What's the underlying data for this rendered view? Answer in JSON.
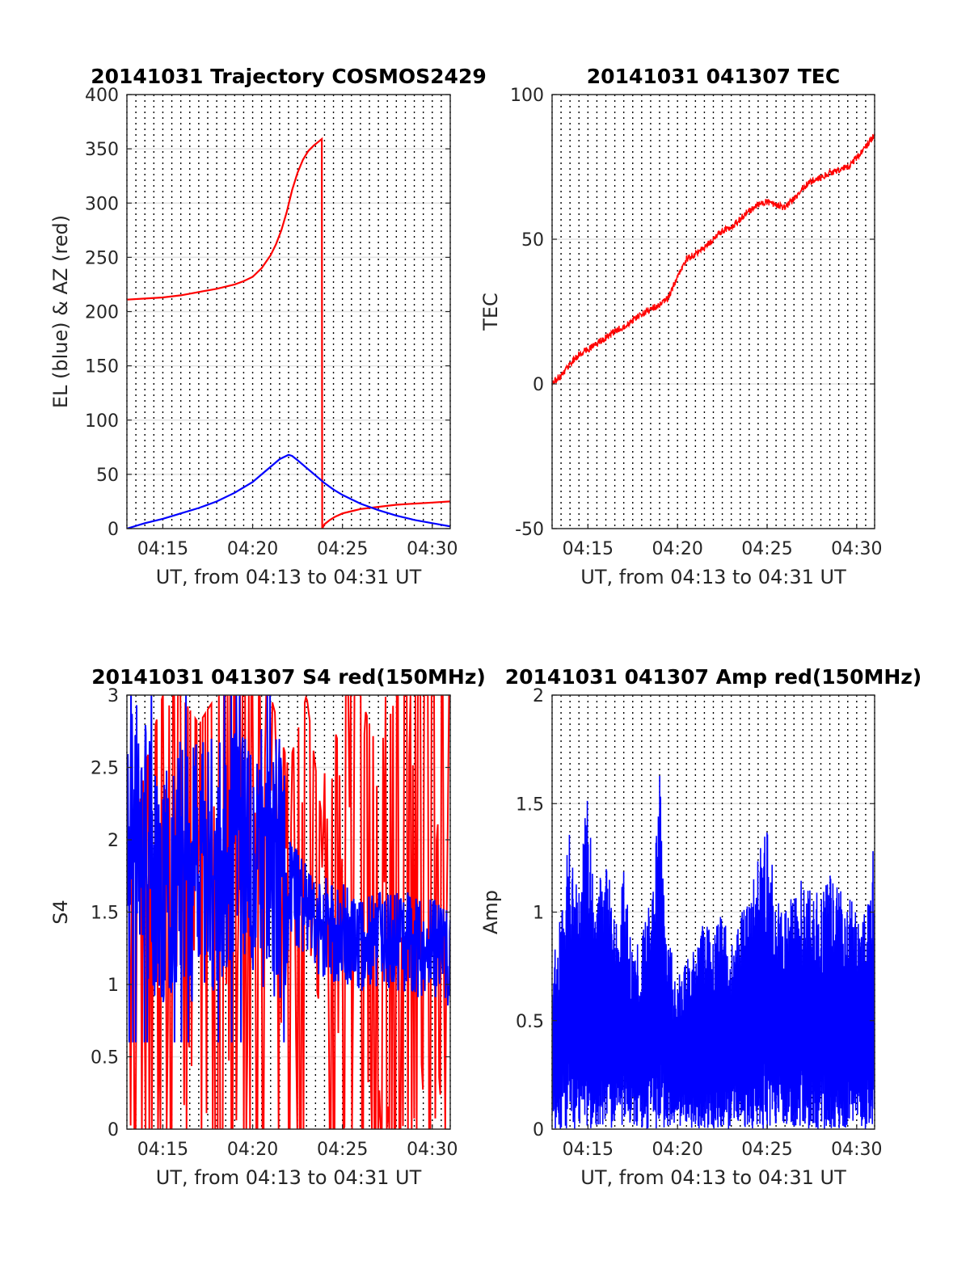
{
  "chart_data": [
    {
      "type": "line",
      "title": "20141031 Trajectory COSMOS2429",
      "xlabel": "UT, from 04:13 to 04:31 UT",
      "ylabel": "EL (blue) & AZ (red)",
      "x_unit": "minutes after 04:00 UT",
      "xlim": [
        13,
        31
      ],
      "ylim": [
        0,
        400
      ],
      "xticks": [
        15,
        20,
        25,
        30
      ],
      "xtick_labels": [
        "04:15",
        "04:20",
        "04:25",
        "04:30"
      ],
      "yticks": [
        0,
        50,
        100,
        150,
        200,
        250,
        300,
        350,
        400
      ],
      "ytick_labels": [
        "0",
        "50",
        "100",
        "150",
        "200",
        "250",
        "300",
        "350",
        "400"
      ],
      "grid": "horizontal solid light gray, vertical dotted black every 30 s",
      "series": [
        {
          "name": "AZ (red)",
          "color": "#ff0000",
          "x": [
            13.0,
            14.0,
            15.0,
            16.0,
            17.0,
            18.0,
            19.0,
            19.5,
            20.0,
            20.5,
            21.0,
            21.3,
            21.6,
            21.9,
            22.2,
            22.5,
            22.8,
            23.1,
            23.4,
            23.7,
            23.85,
            23.87,
            24.0,
            24.3,
            24.6,
            25.0,
            25.5,
            26.0,
            27.0,
            28.0,
            29.0,
            30.0,
            31.0
          ],
          "y": [
            211,
            212,
            213,
            215,
            218,
            221,
            225,
            228,
            232,
            240,
            252,
            262,
            275,
            292,
            312,
            328,
            340,
            348,
            353,
            357,
            359,
            0,
            4,
            8,
            11,
            14,
            16,
            18,
            20,
            22,
            23,
            24,
            25
          ]
        },
        {
          "name": "EL (blue)",
          "color": "#0000ff",
          "x": [
            13.0,
            14.0,
            15.0,
            16.0,
            17.0,
            18.0,
            19.0,
            20.0,
            20.5,
            21.0,
            21.5,
            22.0,
            22.2,
            22.5,
            23.0,
            23.5,
            24.0,
            24.5,
            25.0,
            26.0,
            27.0,
            28.0,
            29.0,
            30.0,
            31.0
          ],
          "y": [
            0,
            5,
            9,
            14,
            19,
            25,
            33,
            43,
            50,
            57,
            64,
            68,
            67,
            63,
            56,
            49,
            42,
            36,
            31,
            23,
            17,
            12,
            8,
            5,
            2
          ]
        }
      ]
    },
    {
      "type": "line",
      "title": "20141031 041307 TEC",
      "xlabel": "UT, from 04:13 to 04:31 UT",
      "ylabel": "TEC",
      "x_unit": "minutes after 04:00 UT",
      "xlim": [
        13,
        31
      ],
      "ylim": [
        -50,
        100
      ],
      "xticks": [
        15,
        20,
        25,
        30
      ],
      "xtick_labels": [
        "04:15",
        "04:20",
        "04:25",
        "04:30"
      ],
      "yticks": [
        -50,
        0,
        50,
        100
      ],
      "ytick_labels": [
        "-50",
        "0",
        "50",
        "100"
      ],
      "grid": "horizontal solid light gray, vertical dotted black every 30 s",
      "series": [
        {
          "color": "#ff0000",
          "x": [
            13.0,
            13.5,
            14.0,
            14.5,
            15.0,
            15.5,
            16.0,
            16.5,
            17.0,
            17.5,
            18.0,
            18.5,
            19.0,
            19.5,
            20.0,
            20.5,
            21.0,
            21.5,
            22.0,
            22.5,
            23.0,
            23.5,
            24.0,
            24.5,
            25.0,
            25.5,
            26.0,
            26.5,
            27.0,
            27.5,
            28.0,
            28.5,
            29.0,
            29.5,
            30.0,
            30.5,
            31.0
          ],
          "y": [
            0,
            3,
            7,
            10,
            12,
            14,
            16,
            18,
            20,
            22,
            24,
            26,
            27,
            30,
            37,
            43,
            45,
            47,
            50,
            53,
            54,
            57,
            60,
            62,
            63,
            62,
            61,
            64,
            68,
            70,
            71,
            73,
            74,
            75,
            78,
            82,
            86
          ]
        }
      ]
    },
    {
      "type": "line",
      "title": "20141031 041307 S4 red(150MHz)",
      "xlabel": "UT, from 04:13 to 04:31 UT",
      "ylabel": "S4",
      "x_unit": "minutes after 04:00 UT",
      "xlim": [
        13,
        31
      ],
      "ylim": [
        0,
        3
      ],
      "xticks": [
        15,
        20,
        25,
        30
      ],
      "xtick_labels": [
        "04:15",
        "04:20",
        "04:25",
        "04:30"
      ],
      "yticks": [
        0,
        0.5,
        1,
        1.5,
        2,
        2.5,
        3
      ],
      "ytick_labels": [
        "0",
        "0.5",
        "1",
        "1.5",
        "2",
        "2.5",
        "3"
      ],
      "grid": "horizontal solid light gray, vertical dotted black every 30 s",
      "series": [
        {
          "color": "#ff0000",
          "style": "noisy, repeatedly spanning full range 0 to 3",
          "x": [
            13,
            14,
            15,
            16,
            17,
            18,
            19,
            20,
            21,
            22,
            23,
            24,
            25,
            26,
            27,
            28,
            29,
            30,
            31
          ],
          "y": [
            1.6,
            2.5,
            3.0,
            3.0,
            2.8,
            3.0,
            3.0,
            3.0,
            3.0,
            2.5,
            3.0,
            2.0,
            3.0,
            3.0,
            2.6,
            3.0,
            3.0,
            3.0,
            3.0
          ]
        },
        {
          "color": "#0000ff",
          "style": "noisy",
          "x": [
            13.0,
            13.5,
            14.0,
            14.5,
            15.0,
            15.5,
            16.0,
            16.5,
            17.0,
            17.5,
            18.0,
            18.5,
            19.0,
            19.5,
            20.0,
            20.5,
            21.0,
            21.5,
            22.0,
            22.5,
            23.0,
            23.5,
            24.0,
            24.5,
            25.0,
            25.5,
            26.0,
            26.5,
            27.0,
            27.5,
            28.0,
            28.5,
            29.0,
            29.5,
            30.0,
            30.5,
            31.0
          ],
          "y": [
            2.3,
            2.1,
            1.9,
            1.8,
            1.7,
            1.8,
            1.9,
            1.7,
            1.8,
            1.9,
            1.8,
            1.9,
            2.0,
            1.8,
            1.9,
            1.9,
            1.8,
            1.8,
            1.7,
            1.6,
            1.5,
            1.4,
            1.4,
            1.35,
            1.35,
            1.35,
            1.3,
            1.3,
            1.3,
            1.3,
            1.3,
            1.3,
            1.25,
            1.25,
            1.25,
            1.2,
            1.2
          ]
        }
      ]
    },
    {
      "type": "line",
      "title": "20141031 041307 Amp red(150MHz)",
      "xlabel": "UT, from 04:13 to 04:31 UT",
      "ylabel": "Amp",
      "x_unit": "minutes after 04:00 UT",
      "xlim": [
        13,
        31
      ],
      "ylim": [
        0,
        2
      ],
      "xticks": [
        15,
        20,
        25,
        30
      ],
      "xtick_labels": [
        "04:15",
        "04:20",
        "04:25",
        "04:30"
      ],
      "yticks": [
        0,
        0.5,
        1,
        1.5,
        2
      ],
      "ytick_labels": [
        "0",
        "0.5",
        "1",
        "1.5",
        "2"
      ],
      "grid": "horizontal solid light gray, vertical dotted black every 30 s",
      "series": [
        {
          "color": "#0000ff",
          "style": "dense noisy signal from 0 up to envelope",
          "x": [
            13.0,
            13.5,
            14.0,
            14.5,
            15.0,
            15.5,
            16.0,
            16.5,
            17.0,
            17.5,
            18.0,
            18.5,
            19.0,
            19.5,
            20.0,
            20.5,
            21.0,
            21.5,
            22.0,
            22.5,
            23.0,
            23.5,
            24.0,
            24.5,
            25.0,
            25.5,
            26.0,
            26.5,
            27.0,
            27.5,
            28.0,
            28.5,
            29.0,
            29.5,
            30.0,
            30.5,
            31.0
          ],
          "y": [
            0.8,
            1.0,
            1.4,
            1.1,
            1.6,
            1.1,
            1.3,
            1.0,
            1.2,
            0.8,
            0.9,
            1.1,
            1.7,
            0.9,
            0.7,
            0.8,
            0.9,
            0.95,
            0.9,
            1.0,
            0.9,
            1.0,
            1.1,
            1.3,
            1.4,
            1.1,
            1.0,
            1.1,
            1.2,
            1.1,
            1.1,
            1.2,
            1.1,
            1.1,
            1.0,
            1.0,
            1.4
          ]
        }
      ]
    }
  ]
}
